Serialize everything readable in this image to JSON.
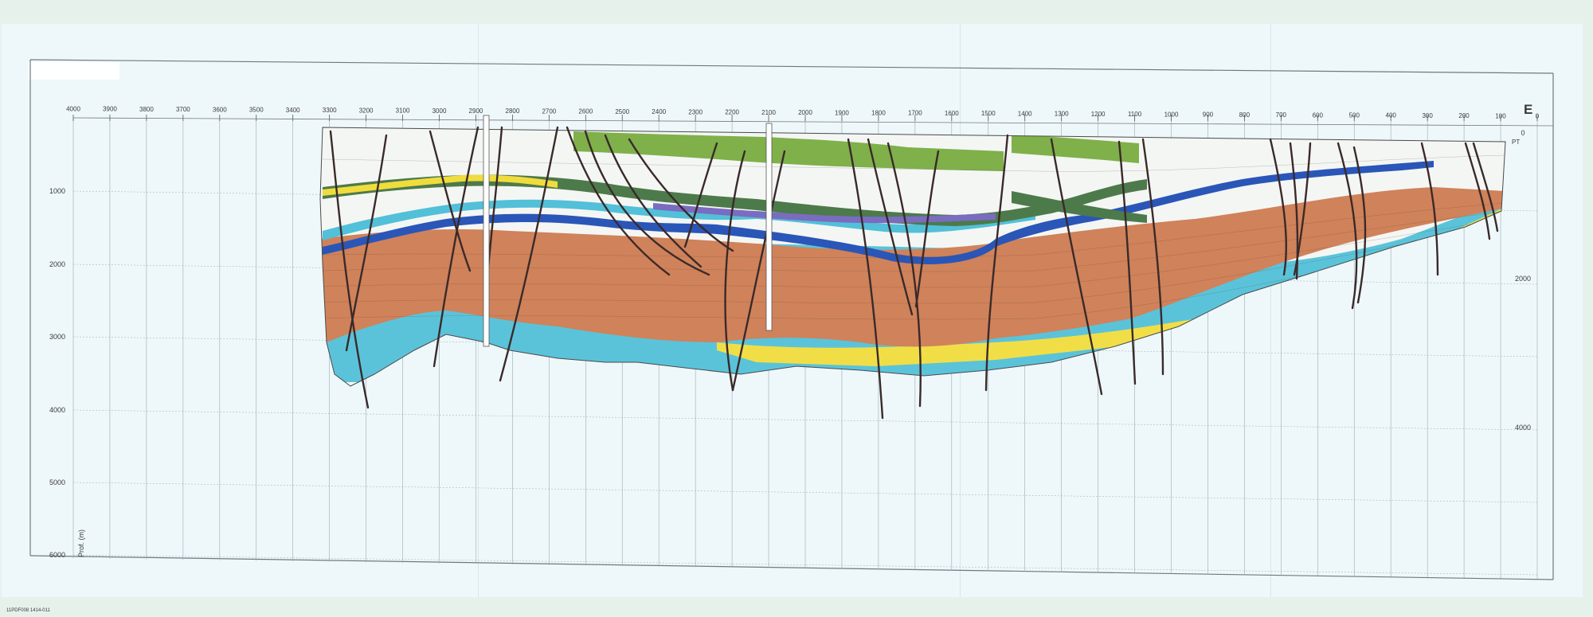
{
  "section": {
    "direction_label": "E",
    "shotpoints": [
      4000,
      3900,
      3800,
      3700,
      3600,
      3500,
      3400,
      3300,
      3200,
      3100,
      3000,
      2900,
      2800,
      2700,
      2600,
      2500,
      2400,
      2300,
      2200,
      2100,
      2000,
      1900,
      1800,
      1700,
      1600,
      1500,
      1400,
      1300,
      1200,
      1100,
      1000,
      900,
      800,
      700,
      600,
      500,
      400,
      300,
      200,
      100,
      0
    ],
    "left_depth_labels": [
      "1000",
      "2000",
      "3000",
      "4000",
      "5000",
      "6000"
    ],
    "left_depth_axis": "Prof. (m)",
    "right_depth_labels": [
      "0",
      "2000",
      "4000"
    ],
    "right_axis_code": "PT",
    "footer_code": "11PDF008 1414-011"
  },
  "colors": {
    "background": "#e6f1ec",
    "sheet": "#eef8fb",
    "grid": "#9aaab0",
    "frame": "#6b7a80",
    "fault": "#3a2a2a",
    "green": "#7fb04a",
    "dark_green": "#4d7a4a",
    "white_beds": "#f4f6f4",
    "yellow": "#f0dc3c",
    "light_blue": "#52c0d8",
    "blue": "#2a56b8",
    "purple": "#7a6cc0",
    "orange_brown": "#d0825a",
    "bottom_blue": "#5ac3da",
    "bottom_yellow": "#f1de47"
  }
}
